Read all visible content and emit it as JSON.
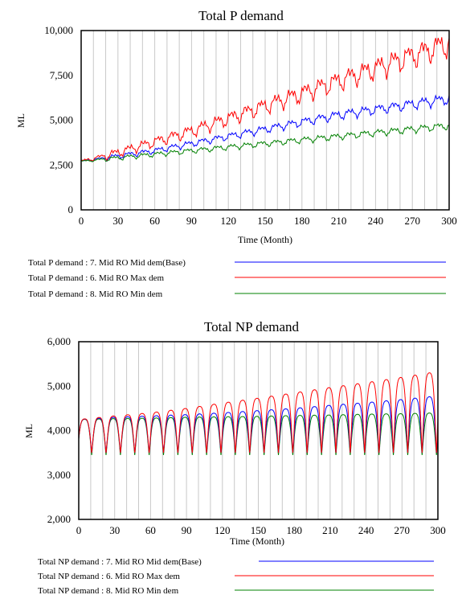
{
  "chart_data": [
    {
      "type": "line",
      "title": "Total P demand",
      "xlabel": "Time (Month)",
      "ylabel": "ML",
      "xlim": [
        0,
        300
      ],
      "ylim": [
        0,
        10000
      ],
      "xticks": [
        "0",
        "30",
        "60",
        "90",
        "120",
        "150",
        "180",
        "210",
        "240",
        "270",
        "300"
      ],
      "yticks": [
        "0",
        "2,500",
        "5,000",
        "7,500",
        "10,000"
      ],
      "grid": true,
      "legend_position": "bottom",
      "series": [
        {
          "name": "Total P demand : 7. Mid RO Mid dem(Base)",
          "color": "#0000ff",
          "x": [
            0,
            30,
            60,
            90,
            120,
            150,
            180,
            210,
            240,
            270,
            300
          ],
          "values": [
            2700,
            3000,
            3300,
            3700,
            4100,
            4500,
            4900,
            5300,
            5600,
            5900,
            6200
          ]
        },
        {
          "name": "Total P demand : 6. Mid RO Max dem",
          "color": "#ff0000",
          "x": [
            0,
            30,
            60,
            90,
            120,
            150,
            180,
            210,
            240,
            270,
            300
          ],
          "values": [
            2700,
            3200,
            3800,
            4400,
            5100,
            5800,
            6500,
            7200,
            7900,
            8600,
            9300
          ]
        },
        {
          "name": "Total P demand : 8. Mid RO Min dem",
          "color": "#008000",
          "x": [
            0,
            30,
            60,
            90,
            120,
            150,
            180,
            210,
            240,
            270,
            300
          ],
          "values": [
            2700,
            2900,
            3100,
            3300,
            3500,
            3700,
            3900,
            4100,
            4300,
            4500,
            4700
          ]
        }
      ]
    },
    {
      "type": "line",
      "title": "Total NP demand",
      "xlabel": "Time (Month)",
      "ylabel": "ML",
      "xlim": [
        0,
        300
      ],
      "ylim": [
        2000,
        6000
      ],
      "xticks": [
        "0",
        "30",
        "60",
        "90",
        "120",
        "150",
        "180",
        "210",
        "240",
        "270",
        "300"
      ],
      "yticks": [
        "2,000",
        "3,000",
        "4,000",
        "5,000",
        "6,000"
      ],
      "grid": true,
      "legend_position": "bottom",
      "series": [
        {
          "name": "Total NP demand : 7. Mid RO Mid dem(Base)",
          "color": "#0000ff",
          "x": [
            0,
            30,
            60,
            90,
            120,
            150,
            180,
            210,
            240,
            270,
            300
          ],
          "peaks": [
            4250,
            4300,
            4330,
            4360,
            4400,
            4450,
            4500,
            4570,
            4630,
            4700,
            4780
          ],
          "troughs": [
            3500,
            3500,
            3500,
            3500,
            3500,
            3500,
            3500,
            3500,
            3500,
            3500,
            3500
          ]
        },
        {
          "name": "Total NP demand : 6. Mid RO Max dem",
          "color": "#ff0000",
          "x": [
            0,
            30,
            60,
            90,
            120,
            150,
            180,
            210,
            240,
            270,
            300
          ],
          "peaks": [
            4250,
            4330,
            4400,
            4500,
            4620,
            4730,
            4850,
            4970,
            5080,
            5200,
            5330
          ],
          "troughs": [
            3500,
            3500,
            3500,
            3500,
            3500,
            3500,
            3500,
            3500,
            3500,
            3500,
            3500
          ]
        },
        {
          "name": "Total NP demand : 8. Mid RO Min dem",
          "color": "#008000",
          "x": [
            0,
            30,
            60,
            90,
            120,
            150,
            180,
            210,
            240,
            270,
            300
          ],
          "peaks": [
            4250,
            4270,
            4280,
            4300,
            4310,
            4320,
            4340,
            4350,
            4370,
            4380,
            4400
          ],
          "troughs": [
            3450,
            3450,
            3450,
            3450,
            3450,
            3450,
            3450,
            3450,
            3450,
            3450,
            3450
          ]
        }
      ]
    }
  ]
}
